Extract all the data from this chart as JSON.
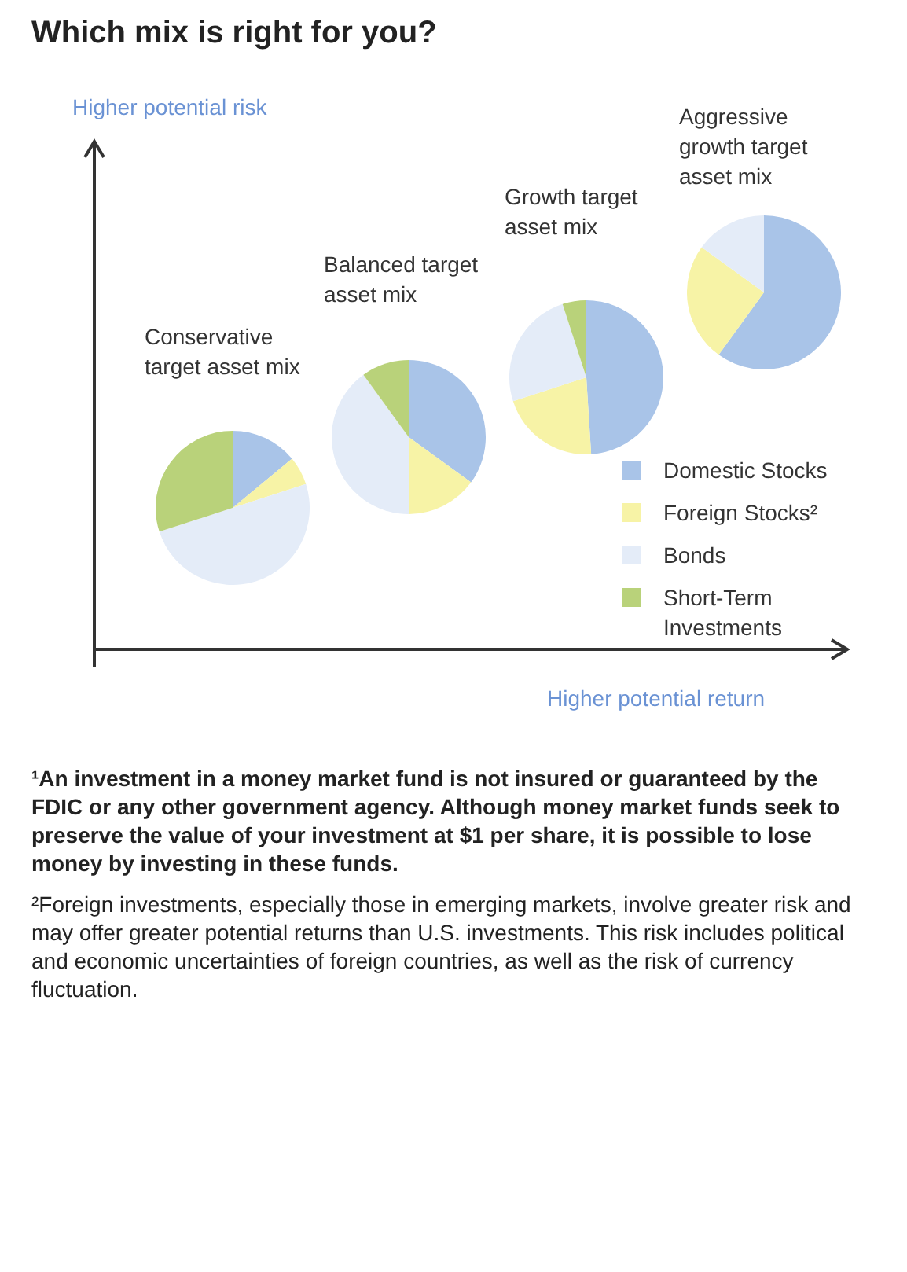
{
  "chart_data": [
    {
      "type": "other",
      "title": "Which mix is right for you?",
      "xlabel": "Higher potential return",
      "ylabel": "Higher potential risk",
      "annotations": [
        "¹An investment in a money market fund is not insured or guaranteed by the FDIC or any other government agency. Although money market funds seek to preserve the value of your investment at $1 per share, it is possible to lose money by investing in these funds.",
        "²Foreign investments, especially those in emerging markets, involve greater risk and may offer greater potential returns than U.S. investments. This risk includes political and economic uncertainties of foreign countries, as well as the risk of currency fluctuation."
      ]
    },
    {
      "type": "pie",
      "title": "Conservative target asset mix",
      "categories": [
        "Domestic Stocks",
        "Foreign Stocks²",
        "Bonds",
        "Short-Term Investments"
      ],
      "values": [
        14,
        6,
        50,
        30
      ],
      "colors": [
        "#a9c4e8",
        "#f7f3a6",
        "#e4ecf8",
        "#b9d27a"
      ],
      "legend": "bottom right"
    },
    {
      "type": "pie",
      "title": "Balanced target asset mix",
      "categories": [
        null,
        null,
        null,
        null
      ],
      "values": [
        35,
        15,
        40,
        10
      ],
      "colors": [
        "#a9c4e8",
        "#f7f3a6",
        "#e4ecf8",
        "#b9d27a"
      ]
    },
    {
      "type": "pie",
      "title": "Growth target asset mix",
      "categories": [
        null,
        null,
        null,
        null
      ],
      "values": [
        49,
        21,
        25,
        5
      ],
      "colors": [
        "#a9c4e8",
        "#f7f3a6",
        "#e4ecf8",
        "#b9d27a"
      ]
    },
    {
      "type": "pie",
      "title": "Aggressive growth target asset mix",
      "categories": [
        null,
        null,
        null
      ],
      "values": [
        60,
        25,
        15
      ],
      "colors": [
        "#a9c4e8",
        "#f7f3a6",
        "#e4ecf8"
      ]
    }
  ]
}
